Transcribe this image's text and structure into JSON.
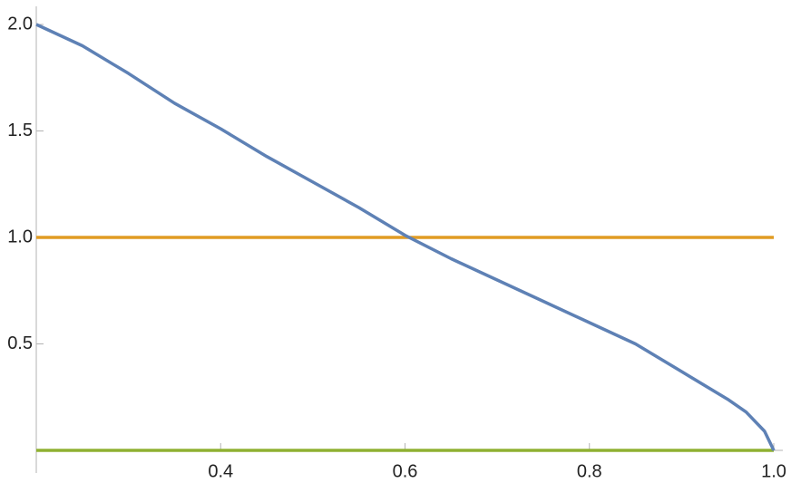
{
  "chart_data": {
    "type": "line",
    "x": [
      0.2,
      0.25,
      0.3,
      0.35,
      0.4,
      0.45,
      0.5,
      0.55,
      0.6,
      0.65,
      0.7,
      0.75,
      0.8,
      0.85,
      0.9,
      0.95,
      0.97,
      0.99,
      1.0
    ],
    "series": [
      {
        "color": "#5e81b5",
        "values": [
          2.0,
          1.9,
          1.77,
          1.63,
          1.51,
          1.38,
          1.26,
          1.14,
          1.01,
          0.9,
          0.8,
          0.7,
          0.6,
          0.5,
          0.37,
          0.24,
          0.18,
          0.09,
          0
        ]
      },
      {
        "color": "#e19c24",
        "values": [
          1,
          1,
          1,
          1,
          1,
          1,
          1,
          1,
          1,
          1,
          1,
          1,
          1,
          1,
          1,
          1,
          1,
          1,
          1
        ]
      },
      {
        "color": "#8fb032",
        "values": [
          0,
          0,
          0,
          0,
          0,
          0,
          0,
          0,
          0,
          0,
          0,
          0,
          0,
          0,
          0,
          0,
          0,
          0,
          0
        ]
      }
    ],
    "xlim": [
      0.2,
      1.0
    ],
    "ylim": [
      0,
      2.0
    ],
    "xticks": [
      0.4,
      0.6,
      0.8,
      {
        "value": 1,
        "label": "1.0"
      }
    ],
    "yticks": [
      0.5,
      {
        "value": 1,
        "label": "1.0"
      },
      1.5,
      {
        "value": 2,
        "label": "2.0"
      }
    ]
  }
}
